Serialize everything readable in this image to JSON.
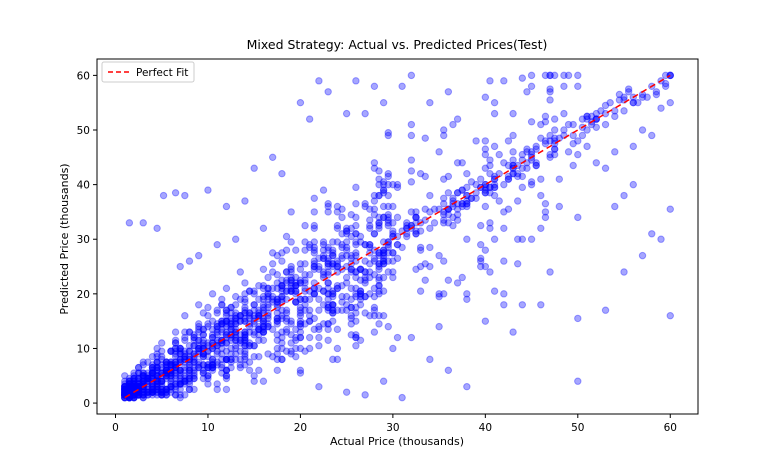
{
  "chart_data": {
    "type": "scatter",
    "title": "Mixed Strategy: Actual vs. Predicted Prices(Test)",
    "xlabel": "Actual Price (thousands)",
    "ylabel": "Predicted Price (thousands)",
    "xlim": [
      -2,
      63
    ],
    "ylim": [
      -2,
      63
    ],
    "xticks": [
      0,
      10,
      20,
      30,
      40,
      50,
      60
    ],
    "yticks": [
      0,
      10,
      20,
      30,
      40,
      50,
      60
    ],
    "grid": false,
    "legend_position": "top-left",
    "series": [
      {
        "kind": "scatter",
        "color": "#0000ff",
        "alpha": 0.35,
        "dense_band": {
          "x_range": [
            1,
            30
          ],
          "y_spread": 9
        },
        "points": [
          [
            5.2,
            38
          ],
          [
            6.5,
            38.5
          ],
          [
            7.5,
            38
          ],
          [
            4.5,
            32
          ],
          [
            3,
            33
          ],
          [
            1.5,
            33
          ],
          [
            10,
            39
          ],
          [
            12,
            36
          ],
          [
            14,
            37
          ],
          [
            15,
            43
          ],
          [
            17,
            45
          ],
          [
            18,
            42
          ],
          [
            20,
            55
          ],
          [
            21,
            52
          ],
          [
            22,
            59
          ],
          [
            23,
            57
          ],
          [
            25,
            53
          ],
          [
            26,
            59
          ],
          [
            27,
            53
          ],
          [
            28,
            58
          ],
          [
            29,
            55
          ],
          [
            31,
            58
          ],
          [
            32,
            60
          ],
          [
            34,
            55
          ],
          [
            36,
            57
          ],
          [
            37,
            52
          ],
          [
            40,
            56
          ],
          [
            42,
            59
          ],
          [
            43,
            53
          ],
          [
            45,
            60
          ],
          [
            47,
            57
          ],
          [
            49,
            60
          ],
          [
            50,
            58
          ],
          [
            33,
            42
          ],
          [
            35,
            46
          ],
          [
            37,
            44
          ],
          [
            39,
            48
          ],
          [
            41,
            47
          ],
          [
            43,
            49
          ],
          [
            46,
            51
          ],
          [
            24,
            36
          ],
          [
            26,
            34
          ],
          [
            28,
            38
          ],
          [
            30,
            40
          ],
          [
            32,
            35
          ],
          [
            34,
            38
          ],
          [
            36,
            33
          ],
          [
            38,
            30
          ],
          [
            40,
            28
          ],
          [
            42,
            26
          ],
          [
            44,
            30
          ],
          [
            46,
            32
          ],
          [
            48,
            36
          ],
          [
            50,
            34
          ],
          [
            35,
            20
          ],
          [
            37,
            22
          ],
          [
            38,
            19
          ],
          [
            40,
            25
          ],
          [
            42,
            20
          ],
          [
            44,
            18
          ],
          [
            47,
            24
          ],
          [
            30,
            10
          ],
          [
            32,
            12
          ],
          [
            34,
            8
          ],
          [
            36,
            6
          ],
          [
            38,
            3
          ],
          [
            40,
            15
          ],
          [
            42,
            18
          ],
          [
            25,
            2
          ],
          [
            27,
            1.5
          ],
          [
            29,
            4
          ],
          [
            31,
            1
          ],
          [
            35,
            14
          ],
          [
            43,
            13
          ],
          [
            46,
            18
          ],
          [
            50,
            4
          ],
          [
            50,
            15.5
          ],
          [
            53,
            17
          ],
          [
            55,
            24
          ],
          [
            57,
            27
          ],
          [
            58,
            31
          ],
          [
            59,
            30
          ],
          [
            60,
            16
          ],
          [
            60,
            35.5
          ],
          [
            55,
            38
          ],
          [
            56,
            40
          ],
          [
            53,
            43
          ],
          [
            54,
            36
          ],
          [
            52,
            44
          ],
          [
            57,
            50
          ],
          [
            59,
            54
          ],
          [
            60,
            55
          ],
          [
            58,
            49
          ],
          [
            56,
            47
          ],
          [
            54,
            46
          ],
          [
            51,
            47
          ],
          [
            45,
            40
          ],
          [
            48,
            41
          ],
          [
            47,
            45
          ],
          [
            49,
            46
          ],
          [
            44,
            43
          ],
          [
            46,
            38
          ],
          [
            43,
            42
          ],
          [
            20,
            6
          ],
          [
            22,
            3
          ],
          [
            18,
            8
          ],
          [
            16,
            4
          ],
          [
            24,
            10
          ],
          [
            26,
            12
          ],
          [
            28,
            16
          ],
          [
            11,
            29
          ],
          [
            13,
            30
          ],
          [
            9,
            27
          ],
          [
            8,
            26
          ],
          [
            7,
            25
          ],
          [
            16,
            32
          ],
          [
            19,
            35
          ]
        ]
      },
      {
        "kind": "line",
        "name": "Perfect Fit",
        "color": "#ff0000",
        "dash": "dashed",
        "x": [
          1,
          60
        ],
        "y": [
          1,
          60
        ]
      }
    ]
  }
}
